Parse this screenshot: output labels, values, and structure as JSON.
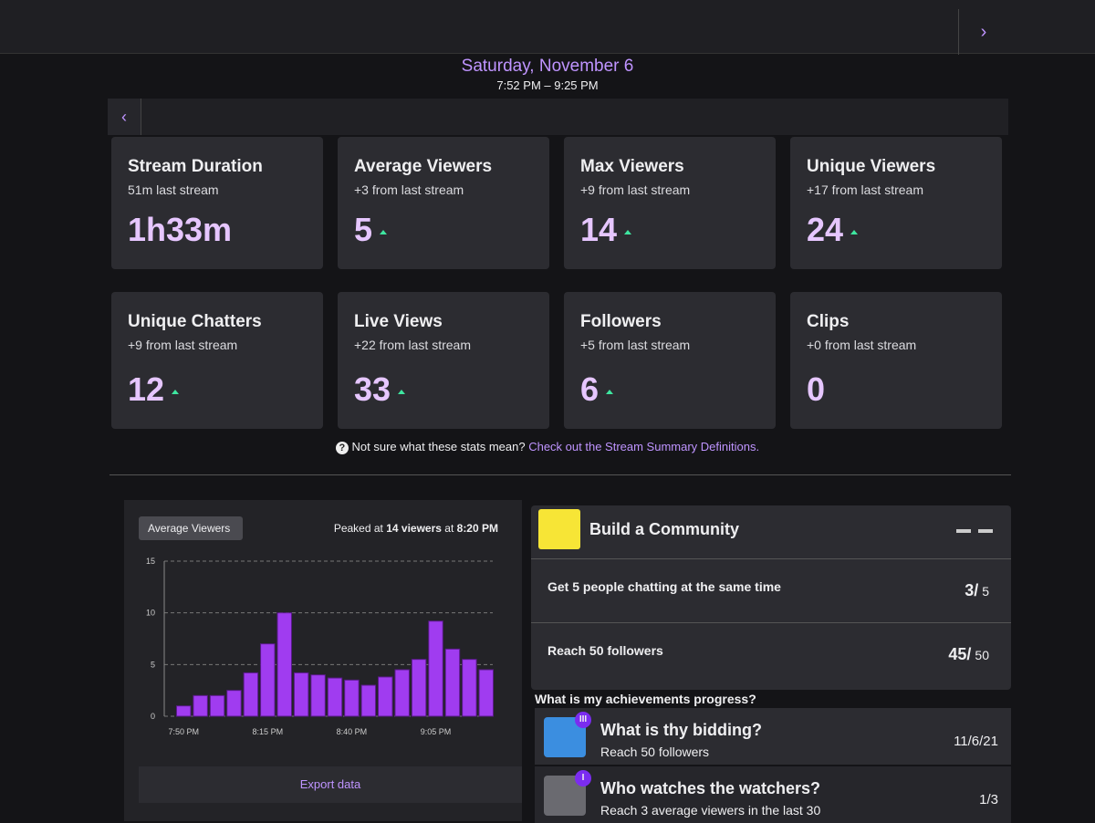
{
  "header": {
    "date": "Saturday, November 6",
    "time_range": "7:52 PM – 9:25 PM"
  },
  "stats": [
    {
      "title": "Stream Duration",
      "subtitle": "51m last stream",
      "value": "1h33m",
      "up": false
    },
    {
      "title": "Average Viewers",
      "subtitle": "+3 from last stream",
      "value": "5",
      "up": true
    },
    {
      "title": "Max Viewers",
      "subtitle": "+9 from last stream",
      "value": "14",
      "up": true
    },
    {
      "title": "Unique Viewers",
      "subtitle": "+17 from last stream",
      "value": "24",
      "up": true
    },
    {
      "title": "Unique Chatters",
      "subtitle": "+9 from last stream",
      "value": "12",
      "up": true
    },
    {
      "title": "Live Views",
      "subtitle": "+22 from last stream",
      "value": "33",
      "up": true
    },
    {
      "title": "Followers",
      "subtitle": "+5 from last stream",
      "value": "6",
      "up": true
    },
    {
      "title": "Clips",
      "subtitle": "+0 from last stream",
      "value": "0",
      "up": false
    }
  ],
  "help": {
    "icon": "?",
    "text": "Not sure what these stats mean?",
    "link": "Check out the Stream Summary Definitions."
  },
  "viewer_chart": {
    "type": "bar",
    "selector": "Average Viewers",
    "peak": [
      "Peaked at",
      "14 viewers",
      "at",
      "8:20 PM"
    ],
    "categories": [
      "7:50 PM",
      null,
      null,
      null,
      null,
      "8:15 PM",
      null,
      null,
      null,
      null,
      "8:40 PM",
      null,
      null,
      null,
      null,
      "9:05 PM",
      null,
      null,
      null
    ],
    "values": [
      1,
      2,
      2,
      2.5,
      4.2,
      7,
      10,
      4.2,
      4,
      3.7,
      3.5,
      3,
      3.8,
      4.5,
      5.5,
      9.2,
      6.5,
      5.5,
      4.5
    ],
    "color": "#a03cf0",
    "ylim": [
      0,
      15
    ],
    "yticks": [
      0,
      5,
      10,
      15
    ],
    "grid": true,
    "export": "Export data"
  },
  "goal": {
    "title": "Build a Community",
    "items": [
      {
        "label": "Get 5 people chatting at the same time",
        "current": "3/",
        "total": "5"
      },
      {
        "label": "Reach 50 followers",
        "current": "45/",
        "total": "50"
      }
    ]
  },
  "achievements": {
    "heading": "What is my achievements progress?",
    "items": [
      {
        "badge": "III",
        "title": "What is thy bidding?",
        "subtitle": "Reach 50 followers",
        "status": "11/6/21"
      },
      {
        "badge": "I",
        "title": "Who watches the watchers?",
        "subtitle": "Reach 3 average viewers in the last 30",
        "status": "1/3"
      }
    ]
  }
}
